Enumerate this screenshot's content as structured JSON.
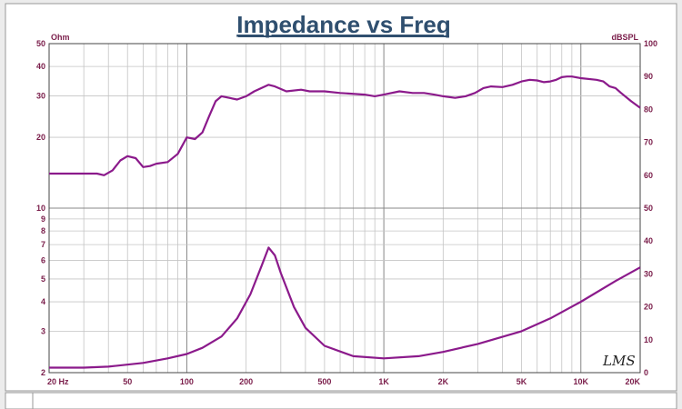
{
  "chart_data": {
    "type": "line",
    "title": "Impedance vs Freq",
    "x_scale": "log",
    "xlim": [
      20,
      20000
    ],
    "x_ticks": [
      {
        "v": 20,
        "label": "20  Hz"
      },
      {
        "v": 50,
        "label": "50"
      },
      {
        "v": 100,
        "label": "100"
      },
      {
        "v": 200,
        "label": "200"
      },
      {
        "v": 500,
        "label": "500"
      },
      {
        "v": 1000,
        "label": "1K"
      },
      {
        "v": 2000,
        "label": "2K"
      },
      {
        "v": 5000,
        "label": "5K"
      },
      {
        "v": 10000,
        "label": "10K"
      },
      {
        "v": 20000,
        "label": "20K"
      }
    ],
    "left_axis": {
      "unit": "Ohm",
      "scale": "log",
      "lim": [
        2,
        50
      ],
      "ticks": [
        {
          "v": 50,
          "label": "50"
        },
        {
          "v": 40,
          "label": "40"
        },
        {
          "v": 30,
          "label": "30"
        },
        {
          "v": 20,
          "label": "20"
        },
        {
          "v": 10,
          "label": "10"
        },
        {
          "v": 9,
          "label": "9"
        },
        {
          "v": 8,
          "label": "8"
        },
        {
          "v": 7,
          "label": "7"
        },
        {
          "v": 6,
          "label": "6"
        },
        {
          "v": 5,
          "label": "5"
        },
        {
          "v": 4,
          "label": "4"
        },
        {
          "v": 3,
          "label": "3"
        },
        {
          "v": 2,
          "label": "2"
        }
      ]
    },
    "right_axis": {
      "unit": "dBSPL",
      "scale": "linear",
      "lim": [
        0,
        100
      ],
      "ticks": [
        100,
        90,
        80,
        70,
        60,
        50,
        40,
        30,
        20,
        10,
        0
      ]
    },
    "series": [
      {
        "axis": "left",
        "color": "#8b1a8b",
        "points": [
          [
            20,
            2.1
          ],
          [
            30,
            2.1
          ],
          [
            40,
            2.12
          ],
          [
            60,
            2.2
          ],
          [
            80,
            2.3
          ],
          [
            100,
            2.4
          ],
          [
            120,
            2.55
          ],
          [
            150,
            2.85
          ],
          [
            180,
            3.4
          ],
          [
            210,
            4.3
          ],
          [
            240,
            5.7
          ],
          [
            260,
            6.8
          ],
          [
            280,
            6.3
          ],
          [
            300,
            5.3
          ],
          [
            350,
            3.8
          ],
          [
            400,
            3.1
          ],
          [
            500,
            2.6
          ],
          [
            700,
            2.35
          ],
          [
            1000,
            2.3
          ],
          [
            1500,
            2.35
          ],
          [
            2000,
            2.45
          ],
          [
            3000,
            2.65
          ],
          [
            5000,
            3.0
          ],
          [
            7000,
            3.4
          ],
          [
            10000,
            4.0
          ],
          [
            15000,
            4.9
          ],
          [
            20000,
            5.6
          ]
        ]
      },
      {
        "axis": "right",
        "color": "#8b1a8b",
        "points": [
          [
            20,
            60.5
          ],
          [
            35,
            60.5
          ],
          [
            38,
            60
          ],
          [
            42,
            61.5
          ],
          [
            46,
            64.5
          ],
          [
            50,
            65.8
          ],
          [
            55,
            65.2
          ],
          [
            60,
            62.5
          ],
          [
            65,
            62.8
          ],
          [
            70,
            63.5
          ],
          [
            80,
            64
          ],
          [
            90,
            66.5
          ],
          [
            100,
            71.5
          ],
          [
            110,
            71
          ],
          [
            120,
            73
          ],
          [
            130,
            78
          ],
          [
            140,
            82.5
          ],
          [
            150,
            84
          ],
          [
            180,
            83
          ],
          [
            200,
            84
          ],
          [
            220,
            85.5
          ],
          [
            260,
            87.5
          ],
          [
            280,
            87
          ],
          [
            320,
            85.5
          ],
          [
            380,
            86
          ],
          [
            420,
            85.5
          ],
          [
            500,
            85.5
          ],
          [
            600,
            85
          ],
          [
            800,
            84.5
          ],
          [
            900,
            84
          ],
          [
            1000,
            84.5
          ],
          [
            1200,
            85.5
          ],
          [
            1400,
            85
          ],
          [
            1600,
            85
          ],
          [
            1800,
            84.5
          ],
          [
            2000,
            84
          ],
          [
            2300,
            83.5
          ],
          [
            2600,
            84
          ],
          [
            2900,
            85
          ],
          [
            3200,
            86.5
          ],
          [
            3500,
            87
          ],
          [
            4000,
            86.8
          ],
          [
            4500,
            87.5
          ],
          [
            5000,
            88.5
          ],
          [
            5500,
            89
          ],
          [
            6000,
            88.8
          ],
          [
            6500,
            88.3
          ],
          [
            7000,
            88.5
          ],
          [
            7500,
            89
          ],
          [
            8000,
            89.8
          ],
          [
            8500,
            90
          ],
          [
            9000,
            90
          ],
          [
            10000,
            89.5
          ],
          [
            12000,
            89
          ],
          [
            13000,
            88.5
          ],
          [
            14000,
            87
          ],
          [
            15000,
            86.5
          ],
          [
            16000,
            85
          ],
          [
            18000,
            82.5
          ],
          [
            20000,
            80.5
          ]
        ]
      }
    ],
    "grid": true,
    "watermark": "LMS"
  }
}
